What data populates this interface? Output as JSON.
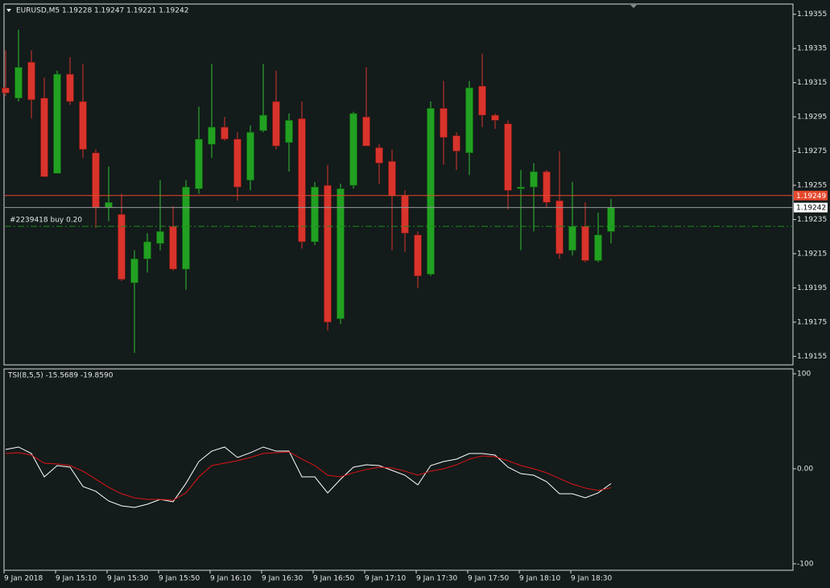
{
  "chart_data": [
    {
      "type": "candlestick",
      "title": "EURUSD,M5  1.19228 1.19247 1.19221 1.19242",
      "categories": [
        "9 Jan 2018",
        null,
        null,
        null,
        "9 Jan 15:10",
        null,
        null,
        null,
        "9 Jan 15:30",
        null,
        null,
        null,
        "9 Jan 15:50",
        null,
        null,
        null,
        "9 Jan 16:10",
        null,
        null,
        null,
        "9 Jan 16:30",
        null,
        null,
        null,
        "9 Jan 16:50",
        null,
        null,
        null,
        "9 Jan 17:10",
        null,
        null,
        null,
        "9 Jan 17:30",
        null,
        null,
        null,
        "9 Jan 17:50",
        null,
        null,
        null,
        "9 Jan 18:10",
        null,
        null,
        null,
        "9 Jan 18:30",
        null,
        null,
        null
      ],
      "open": [
        1.19312,
        1.19306,
        1.19327,
        1.19306,
        1.19262,
        1.1932,
        1.19304,
        1.19274,
        1.19242,
        1.19238,
        1.19198,
        1.19212,
        1.19221,
        1.19231,
        1.19206,
        1.19253,
        1.19279,
        1.19289,
        1.19282,
        1.19258,
        1.19287,
        1.19304,
        1.1928,
        1.19294,
        1.19222,
        1.19255,
        1.19177,
        1.19255,
        1.19295,
        1.19277,
        1.19269,
        1.19249,
        1.19226,
        1.19203,
        1.193,
        1.19284,
        1.19274,
        1.19313,
        1.19296,
        1.19291,
        1.19253,
        1.19254,
        1.19263,
        1.19246,
        1.19217,
        1.19231,
        1.19211,
        1.19228
      ],
      "high": [
        1.19334,
        1.19346,
        1.19334,
        1.19318,
        1.19322,
        1.1933,
        1.19326,
        1.19276,
        1.19266,
        1.1925,
        1.19217,
        1.19227,
        1.19258,
        1.19243,
        1.19258,
        1.19301,
        1.19326,
        1.19295,
        1.19286,
        1.1929,
        1.19326,
        1.19322,
        1.19297,
        1.19304,
        1.19257,
        1.19267,
        1.19256,
        1.19298,
        1.19324,
        1.19279,
        1.19276,
        1.19252,
        1.19228,
        1.19304,
        1.19316,
        1.19286,
        1.19316,
        1.19332,
        1.19297,
        1.19293,
        1.19264,
        1.19268,
        1.19264,
        1.19275,
        1.19257,
        1.19245,
        1.19239,
        1.19247
      ],
      "low": [
        1.19307,
        1.19304,
        1.19294,
        1.1926,
        1.19262,
        1.19302,
        1.19271,
        1.1923,
        1.19234,
        1.19199,
        1.19157,
        1.19204,
        1.19217,
        1.19205,
        1.19194,
        1.1925,
        1.19271,
        1.19281,
        1.19246,
        1.19252,
        1.19286,
        1.19276,
        1.19263,
        1.19218,
        1.1922,
        1.1917,
        1.19174,
        1.19253,
        1.19278,
        1.19256,
        1.19217,
        1.19216,
        1.19195,
        1.19202,
        1.19267,
        1.19264,
        1.19261,
        1.19289,
        1.19288,
        1.19241,
        1.19217,
        1.19228,
        1.19242,
        1.19212,
        1.19214,
        1.1921,
        1.1921,
        1.19221
      ],
      "close": [
        1.19309,
        1.19324,
        1.19305,
        1.1926,
        1.1932,
        1.19304,
        1.19276,
        1.19242,
        1.19245,
        1.192,
        1.19212,
        1.19222,
        1.19228,
        1.19206,
        1.19254,
        1.19282,
        1.19289,
        1.19282,
        1.19254,
        1.19286,
        1.19296,
        1.19278,
        1.19293,
        1.19222,
        1.19254,
        1.19175,
        1.19253,
        1.19297,
        1.19278,
        1.19268,
        1.19249,
        1.19227,
        1.19202,
        1.193,
        1.19283,
        1.19275,
        1.19312,
        1.19296,
        1.19293,
        1.19252,
        1.19254,
        1.19263,
        1.19245,
        1.19215,
        1.19231,
        1.19211,
        1.19226,
        1.19242
      ],
      "up_color": "#22a022",
      "down_color": "#d8342c",
      "ylim": [
        1.1915,
        1.19361
      ],
      "yticks": [
        1.19355,
        1.19335,
        1.19315,
        1.19295,
        1.19275,
        1.19255,
        1.19235,
        1.19215,
        1.19195,
        1.19175,
        1.19155
      ],
      "price_lines": [
        {
          "value": 1.19249,
          "color": "#e5482c"
        },
        {
          "value": 1.19242,
          "color": "#9a9a9a"
        }
      ],
      "order_line": {
        "label": "#2239418 buy 0.20",
        "value": 1.19231,
        "color": "#1c8c1c"
      }
    },
    {
      "type": "line",
      "title": "TSI(8,5,5) -15.5689 -19.8590",
      "series": [
        {
          "color": "#ffffff",
          "values": [
            20.3,
            22.9,
            16.1,
            -8.5,
            3.4,
            1.7,
            -18.6,
            -23.7,
            -33.9,
            -39.0,
            -40.7,
            -37.3,
            -32.2,
            -34.7,
            -15.3,
            7.6,
            18.6,
            22.9,
            11.9,
            16.9,
            22.9,
            18.6,
            18.6,
            -8.5,
            -8.5,
            -25.4,
            -11.0,
            1.7,
            4.2,
            3.4,
            -1.7,
            -6.8,
            -16.9,
            3.4,
            7.6,
            10.2,
            16.1,
            16.1,
            14.4,
            1.7,
            -5.1,
            -6.8,
            -13.6,
            -26.3,
            -26.3,
            -30.5,
            -25.4,
            -15.5689
          ]
        },
        {
          "color": "#e01414",
          "values": [
            16.1,
            16.9,
            14.4,
            5.9,
            5.1,
            3.4,
            -2.5,
            -11.0,
            -19.5,
            -26.3,
            -30.5,
            -32.2,
            -32.2,
            -33.1,
            -25.4,
            -8.5,
            3.4,
            5.9,
            8.5,
            11.9,
            16.1,
            16.9,
            17.8,
            10.2,
            3.4,
            -6.8,
            -8.5,
            -4.2,
            -0.8,
            1.7,
            0.8,
            -2.5,
            -6.8,
            -2.5,
            0,
            4.2,
            10.2,
            13.6,
            12.7,
            8.5,
            3.4,
            0,
            -4.2,
            -10.2,
            -16.1,
            -20.3,
            -22.9,
            -19.859
          ]
        }
      ],
      "ylim": [
        -106.8,
        105.1
      ],
      "yticks": [
        100,
        {
          "value": 0,
          "label": "0.00"
        },
        -100
      ]
    }
  ]
}
